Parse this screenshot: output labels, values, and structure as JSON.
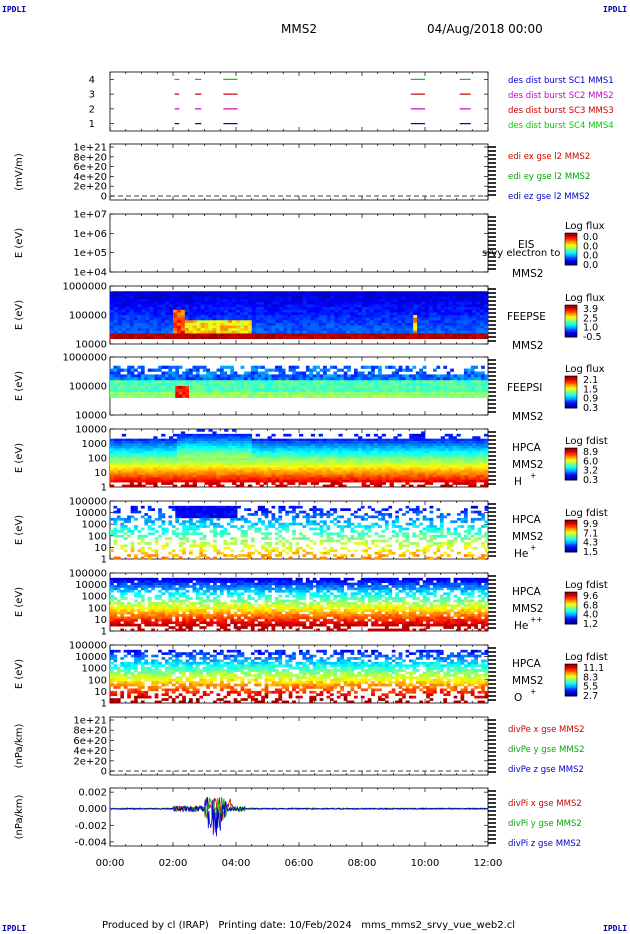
{
  "header": {
    "mission": "MMS2",
    "date": "04/Aug/2018 00:00",
    "corner_tl": "IPDLI",
    "corner_tr": "IPDLI",
    "corner_bl": "IPDLI",
    "corner_br": "IPDLI"
  },
  "footer": {
    "text": "Produced by cl (IRAP)   Printing date: 10/Feb/2024   mms_mms2_srvy_vue_web2.cl"
  },
  "chart_data": [
    {
      "type": "line",
      "panel": "burst",
      "ylim": [
        0.5,
        4.5
      ],
      "yticks": [
        "1",
        "2",
        "3",
        "4"
      ],
      "intervals_hours": [
        [
          2.05,
          2.2
        ],
        [
          2.7,
          2.9
        ],
        [
          3.6,
          4.05
        ],
        [
          9.55,
          10.0
        ],
        [
          11.1,
          11.45
        ]
      ],
      "series": [
        {
          "name": "des dist burst SC1 MMS1",
          "level": 1,
          "color": "#0000cc"
        },
        {
          "name": "des dist burst SC2 MMS2",
          "level": 2,
          "color": "#cc00cc"
        },
        {
          "name": "des dist burst SC3 MMS3",
          "level": 3,
          "color": "#cc0000"
        },
        {
          "name": "des dist burst SC4 MMS4",
          "level": 4,
          "color": "#00cc00"
        }
      ]
    },
    {
      "type": "line",
      "panel": "edi",
      "ylabel": "(mV/m)",
      "yticks": [
        "0",
        "2e+20",
        "4e+20",
        "6e+20",
        "8e+20",
        "1e+21"
      ],
      "series": [
        {
          "name": "edi ex gse l2 MMS2",
          "color": "#cc0000"
        },
        {
          "name": "edi ey gse l2 MMS2",
          "color": "#00aa00"
        },
        {
          "name": "edi ez gse l2 MMS2",
          "color": "#0000cc"
        }
      ]
    },
    {
      "type": "heatmap",
      "panel": "eis",
      "ylabel": "E (eV)",
      "yticks": [
        "1e+04",
        "1e+05",
        "1e+06",
        "1e+07"
      ],
      "instrument": "EIS",
      "spacecraft": "MMS2",
      "overlay": "srvy electron to",
      "colorbar_label": "Log flux",
      "colorbar_ticks": [
        "0.0",
        "0.0",
        "0.0",
        "0.0"
      ]
    },
    {
      "type": "heatmap",
      "panel": "feepse",
      "ylabel": "E (eV)",
      "yticks": [
        "10000",
        "100000",
        "1000000"
      ],
      "instrument": "FEEPSE",
      "spacecraft": "MMS2",
      "colorbar_label": "Log flux",
      "colorbar_ticks": [
        "3.9",
        "2.5",
        "1.0",
        "-0.5"
      ]
    },
    {
      "type": "heatmap",
      "panel": "feepsi",
      "ylabel": "E (eV)",
      "yticks": [
        "10000",
        "100000",
        "1000000"
      ],
      "instrument": "FEEPSI",
      "spacecraft": "MMS2",
      "colorbar_label": "Log flux",
      "colorbar_ticks": [
        "2.1",
        "1.5",
        "0.9",
        "0.3"
      ]
    },
    {
      "type": "heatmap",
      "panel": "hpca_h",
      "ylabel": "E (eV)",
      "yticks": [
        "1",
        "10",
        "100",
        "1000",
        "10000"
      ],
      "instrument": "HPCA",
      "spacecraft": "MMS2",
      "species": "H",
      "charge": "+",
      "colorbar_label": "Log fdist",
      "colorbar_ticks": [
        "8.9",
        "6.0",
        "3.2",
        "0.3"
      ]
    },
    {
      "type": "heatmap",
      "panel": "hpca_he1",
      "ylabel": "E (eV)",
      "yticks": [
        "1",
        "10",
        "100",
        "1000",
        "10000",
        "100000"
      ],
      "instrument": "HPCA",
      "spacecraft": "MMS2",
      "species": "He",
      "charge": "+",
      "colorbar_label": "Log fdist",
      "colorbar_ticks": [
        "9.9",
        "7.1",
        "4.3",
        "1.5"
      ]
    },
    {
      "type": "heatmap",
      "panel": "hpca_he2",
      "ylabel": "E (eV)",
      "yticks": [
        "1",
        "10",
        "100",
        "1000",
        "10000",
        "100000"
      ],
      "instrument": "HPCA",
      "spacecraft": "MMS2",
      "species": "He",
      "charge": "++",
      "colorbar_label": "Log fdist",
      "colorbar_ticks": [
        "9.6",
        "6.8",
        "4.0",
        "1.2"
      ]
    },
    {
      "type": "heatmap",
      "panel": "hpca_o",
      "ylabel": "E (eV)",
      "yticks": [
        "1",
        "10",
        "100",
        "1000",
        "10000",
        "100000"
      ],
      "instrument": "HPCA",
      "spacecraft": "MMS2",
      "species": "O",
      "charge": "+",
      "colorbar_label": "Log fdist",
      "colorbar_ticks": [
        "11.1",
        "8.3",
        "5.5",
        "2.7"
      ]
    },
    {
      "type": "line",
      "panel": "divpe",
      "ylabel": "(nPa/km)",
      "yticks": [
        "0",
        "2e+20",
        "4e+20",
        "6e+20",
        "8e+20",
        "1e+21"
      ],
      "series": [
        {
          "name": "divPe x gse MMS2",
          "color": "#cc0000"
        },
        {
          "name": "divPe y gse MMS2",
          "color": "#00aa00"
        },
        {
          "name": "divPe z gse MMS2",
          "color": "#0000cc"
        }
      ]
    },
    {
      "type": "line",
      "panel": "divpi",
      "ylabel": "(nPa/km)",
      "ylim": [
        -0.0045,
        0.0025
      ],
      "yticks": [
        "-0.004",
        "-0.002",
        "0.000",
        "0.002"
      ],
      "series": [
        {
          "name": "divPi x gse MMS2",
          "color": "#cc0000"
        },
        {
          "name": "divPi y gse MMS2",
          "color": "#00aa00"
        },
        {
          "name": "divPi z gse MMS2",
          "color": "#0000cc"
        }
      ]
    }
  ],
  "xaxis": {
    "range_hours": [
      0,
      12
    ],
    "ticks": [
      "00:00",
      "02:00",
      "04:00",
      "06:00",
      "08:00",
      "10:00",
      "12:00"
    ]
  }
}
